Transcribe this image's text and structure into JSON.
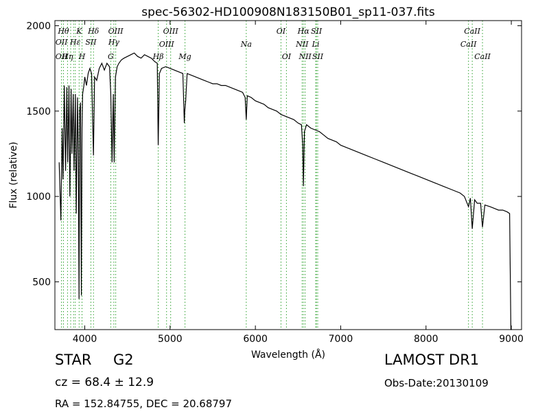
{
  "chart_data": {
    "type": "line",
    "title": "spec-56302-HD100908N183150B01_sp11-037.fits",
    "xlabel": "Wavelength (Å)",
    "ylabel": "Flux (relative)",
    "xlim": [
      3650,
      9120
    ],
    "ylim": [
      220,
      2030
    ],
    "xticks": [
      4000,
      5000,
      6000,
      7000,
      8000,
      9000
    ],
    "yticks": [
      500,
      1000,
      1500,
      2000
    ],
    "grid": false,
    "legend": "none",
    "line_color": "#000000",
    "marker_color": "#2ca02c",
    "series": [
      {
        "x": [
          3700,
          3720,
          3735,
          3745,
          3760,
          3775,
          3790,
          3800,
          3815,
          3825,
          3840,
          3850,
          3865,
          3875,
          3890,
          3900,
          3915,
          3925,
          3933,
          3940,
          3950,
          3960,
          3968,
          3975,
          3990,
          4000,
          4020,
          4040,
          4060,
          4080,
          4102,
          4115,
          4140,
          4170,
          4200,
          4230,
          4260,
          4290,
          4305,
          4320,
          4335,
          4345,
          4360,
          4380,
          4400,
          4430,
          4460,
          4500,
          4540,
          4580,
          4620,
          4660,
          4700,
          4740,
          4780,
          4820,
          4850,
          4861,
          4875,
          4900,
          4950,
          5000,
          5050,
          5100,
          5150,
          5167,
          5172,
          5183,
          5200,
          5250,
          5300,
          5350,
          5400,
          5450,
          5500,
          5550,
          5600,
          5650,
          5700,
          5750,
          5800,
          5850,
          5880,
          5893,
          5905,
          5950,
          6000,
          6050,
          6100,
          6150,
          6200,
          6250,
          6300,
          6350,
          6400,
          6450,
          6500,
          6540,
          6555,
          6563,
          6575,
          6600,
          6650,
          6700,
          6750,
          6800,
          6850,
          6900,
          6950,
          7000,
          7100,
          7200,
          7300,
          7400,
          7500,
          7600,
          7700,
          7800,
          7900,
          8000,
          8100,
          8200,
          8300,
          8400,
          8450,
          8498,
          8520,
          8542,
          8570,
          8600,
          8640,
          8662,
          8690,
          8750,
          8800,
          8850,
          8900,
          8950,
          8980,
          8995,
          9005
        ],
        "values": [
          1200,
          860,
          1400,
          1100,
          1650,
          1150,
          1640,
          1200,
          1650,
          1000,
          1630,
          1250,
          1600,
          1150,
          1600,
          900,
          1580,
          1200,
          400,
          1500,
          1550,
          420,
          1400,
          1600,
          1650,
          1700,
          1650,
          1720,
          1750,
          1720,
          1240,
          1700,
          1680,
          1750,
          1780,
          1740,
          1780,
          1760,
          1600,
          1200,
          1600,
          1200,
          1700,
          1760,
          1780,
          1800,
          1810,
          1820,
          1830,
          1840,
          1820,
          1810,
          1830,
          1820,
          1810,
          1790,
          1780,
          1300,
          1720,
          1750,
          1760,
          1750,
          1740,
          1730,
          1720,
          1430,
          1500,
          1560,
          1720,
          1710,
          1700,
          1690,
          1680,
          1670,
          1660,
          1660,
          1650,
          1650,
          1640,
          1630,
          1620,
          1610,
          1580,
          1450,
          1590,
          1580,
          1560,
          1550,
          1540,
          1520,
          1510,
          1500,
          1480,
          1470,
          1460,
          1450,
          1430,
          1420,
          1300,
          1060,
          1380,
          1420,
          1400,
          1390,
          1380,
          1360,
          1340,
          1330,
          1320,
          1300,
          1280,
          1260,
          1240,
          1220,
          1200,
          1180,
          1160,
          1140,
          1120,
          1100,
          1080,
          1060,
          1040,
          1020,
          1000,
          940,
          990,
          810,
          980,
          960,
          960,
          820,
          950,
          940,
          930,
          920,
          920,
          910,
          900,
          220,
          200
        ]
      }
    ],
    "lines": [
      {
        "x": 3727,
        "top": "OII",
        "bottom": "OII"
      },
      {
        "x": 3750,
        "top": "Hθ",
        "bottom": ""
      },
      {
        "x": 3798,
        "top": "Hη",
        "bottom": ""
      },
      {
        "x": 3835,
        "top": "",
        "bottom": ""
      },
      {
        "x": 3869,
        "top": "",
        "bottom": ""
      },
      {
        "x": 3889,
        "top": "Hε",
        "bottom": ""
      },
      {
        "x": 3934,
        "top": "K",
        "bottom": ""
      },
      {
        "x": 3968,
        "top": "H",
        "bottom": ""
      },
      {
        "x": 4072,
        "top": "SII",
        "bottom": ""
      },
      {
        "x": 4102,
        "top": "Hδ",
        "bottom": ""
      },
      {
        "x": 4305,
        "top": "G",
        "bottom": ""
      },
      {
        "x": 4341,
        "top": "Hγ",
        "bottom": ""
      },
      {
        "x": 4363,
        "top": "OIII",
        "bottom": ""
      },
      {
        "x": 4861,
        "top": "Hβ",
        "bottom": ""
      },
      {
        "x": 4959,
        "top": "OIII",
        "bottom": ""
      },
      {
        "x": 5007,
        "top": "OIII",
        "bottom": ""
      },
      {
        "x": 5175,
        "top": "Mg",
        "bottom": ""
      },
      {
        "x": 5893,
        "top": "Na",
        "bottom": ""
      },
      {
        "x": 6300,
        "top": "OI",
        "bottom": ""
      },
      {
        "x": 6364,
        "top": "OI",
        "bottom": ""
      },
      {
        "x": 6548,
        "top": "NII",
        "bottom": ""
      },
      {
        "x": 6563,
        "top": "Hα",
        "bottom": ""
      },
      {
        "x": 6583,
        "top": "NII",
        "bottom": ""
      },
      {
        "x": 6707,
        "top": "Li",
        "bottom": ""
      },
      {
        "x": 6716,
        "top": "SII",
        "bottom": ""
      },
      {
        "x": 6731,
        "top": "SII",
        "bottom": ""
      },
      {
        "x": 8498,
        "top": "CaII",
        "bottom": ""
      },
      {
        "x": 8542,
        "top": "CaII",
        "bottom": ""
      },
      {
        "x": 8662,
        "top": "CaII",
        "bottom": ""
      }
    ],
    "line_labels": [
      {
        "text": "Hθ",
        "x": 3750,
        "row": 0,
        "italic": true
      },
      {
        "text": "K",
        "x": 3934,
        "row": 0,
        "italic": true
      },
      {
        "text": "Hδ",
        "x": 4102,
        "row": 0,
        "italic": true
      },
      {
        "text": "OIII",
        "x": 4363,
        "row": 0,
        "italic": true
      },
      {
        "text": "OIII",
        "x": 5007,
        "row": 0,
        "italic": true
      },
      {
        "text": "OI",
        "x": 6300,
        "row": 0,
        "italic": true
      },
      {
        "text": "Hα",
        "x": 6563,
        "row": 0,
        "italic": true
      },
      {
        "text": "SII",
        "x": 6716,
        "row": 0,
        "italic": true
      },
      {
        "text": "CaII",
        "x": 8542,
        "row": 0,
        "italic": true
      },
      {
        "text": "OII",
        "x": 3727,
        "row": 1,
        "italic": true
      },
      {
        "text": "Hε",
        "x": 3889,
        "row": 1,
        "italic": true
      },
      {
        "text": "SII",
        "x": 4072,
        "row": 1,
        "italic": true
      },
      {
        "text": "Hγ",
        "x": 4341,
        "row": 1,
        "italic": true
      },
      {
        "text": "OIII",
        "x": 4959,
        "row": 2,
        "italic": true
      },
      {
        "text": "Na",
        "x": 5893,
        "row": 2,
        "italic": true
      },
      {
        "text": "NII",
        "x": 6548,
        "row": 2,
        "italic": true
      },
      {
        "text": "Li",
        "x": 6707,
        "row": 2,
        "italic": true
      },
      {
        "text": "CaII",
        "x": 8498,
        "row": 2,
        "italic": true
      },
      {
        "text": "OII",
        "x": 3727,
        "row": 3,
        "italic": true
      },
      {
        "text": "Hη",
        "x": 3798,
        "row": 3,
        "italic": true
      },
      {
        "text": "H",
        "x": 3968,
        "row": 3,
        "italic": true
      },
      {
        "text": "G",
        "x": 4305,
        "row": 3,
        "italic": true
      },
      {
        "text": "Hβ",
        "x": 4861,
        "row": 3,
        "italic": true
      },
      {
        "text": "Mg",
        "x": 5175,
        "row": 3,
        "italic": true
      },
      {
        "text": "OI",
        "x": 6364,
        "row": 3,
        "italic": true
      },
      {
        "text": "NII",
        "x": 6583,
        "row": 3,
        "italic": true
      },
      {
        "text": "SII",
        "x": 6731,
        "row": 3,
        "italic": true
      },
      {
        "text": "CaII",
        "x": 8662,
        "row": 3,
        "italic": true
      }
    ]
  },
  "info": {
    "class": "STAR",
    "subclass": "G2",
    "survey": "LAMOST DR1",
    "cz": "cz = 68.4 ± 12.9",
    "obs_date": "Obs-Date:20130109",
    "radec": "RA = 152.84755, DEC = 20.68797"
  }
}
